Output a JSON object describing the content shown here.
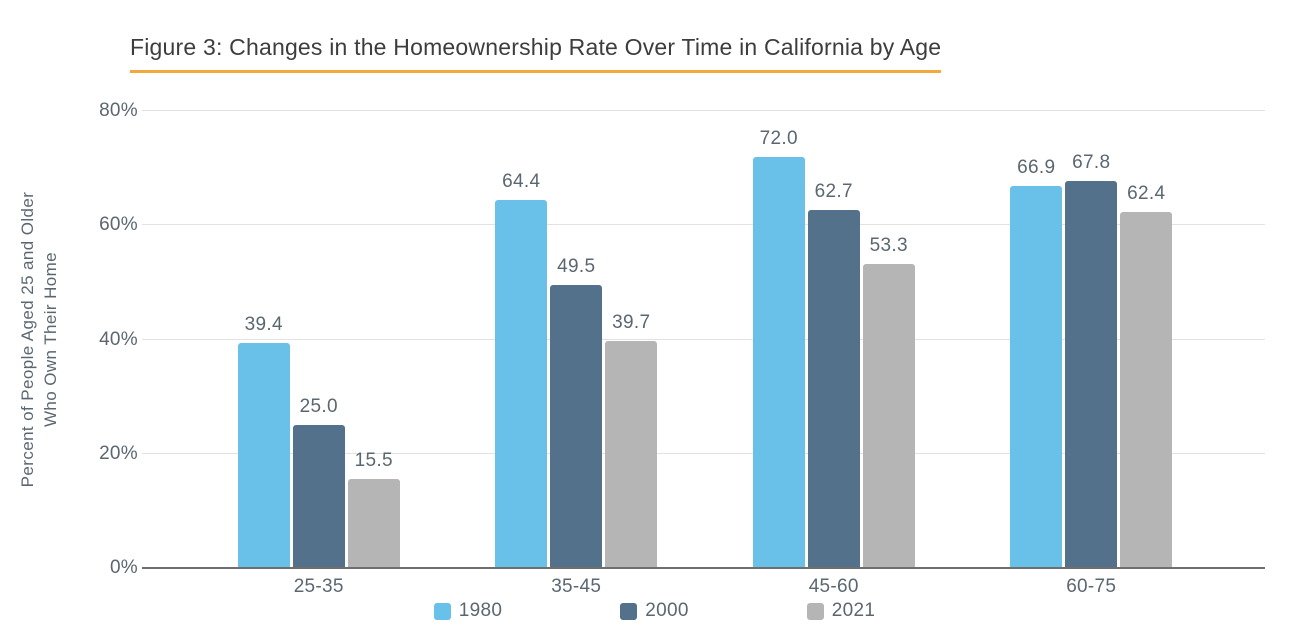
{
  "chart_data": {
    "type": "bar",
    "title": "Figure 3: Changes in the Homeownership Rate Over Time in California by Age",
    "ylabel_line1": "Percent of People Aged 25 and Older",
    "ylabel_line2": "Who Own Their Home",
    "categories": [
      "25-35",
      "35-45",
      "45-60",
      "60-75"
    ],
    "series": [
      {
        "name": "1980",
        "color": "#69c0e8",
        "values": [
          39.4,
          64.4,
          72.0,
          66.9
        ]
      },
      {
        "name": "2000",
        "color": "#54718c",
        "values": [
          25.0,
          49.5,
          62.7,
          67.8
        ]
      },
      {
        "name": "2021",
        "color": "#b5b5b5",
        "values": [
          15.5,
          39.7,
          53.3,
          62.4
        ]
      }
    ],
    "y_ticks": [
      {
        "label": "0%",
        "value": 0
      },
      {
        "label": "20%",
        "value": 20
      },
      {
        "label": "40%",
        "value": 40
      },
      {
        "label": "60%",
        "value": 60
      },
      {
        "label": "80%",
        "value": 80
      }
    ],
    "ylim": [
      0,
      80
    ],
    "grid": "horizontal",
    "legend_position": "bottom",
    "value_label_decimals": 1
  },
  "colors": {
    "title_text": "#3d3d3d",
    "title_underline": "#f3a83c",
    "axis_text": "#5b6770",
    "gridline": "#e2e2e2",
    "baseline": "#6f6f6f",
    "background": "#ffffff"
  }
}
